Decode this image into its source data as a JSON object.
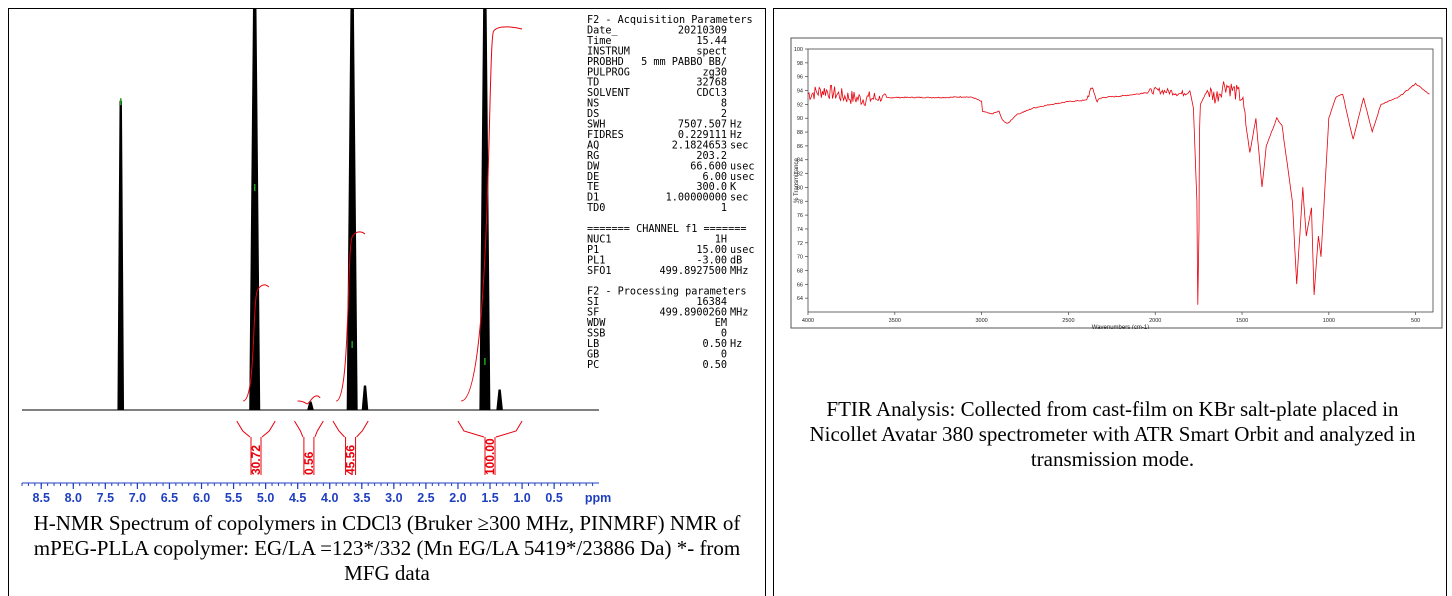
{
  "nmr_panel": {
    "caption": "H-NMR Spectrum of copolymers in CDCl3 (Bruker ≥300 MHz, PINMRF) NMR of mPEG-PLLA copolymer: EG/LA =123*/332 (Mn EG/LA 5419*/23886 Da) *- from MFG data",
    "parameters": [
      {
        "name": "F2 - Acquisition Parameters",
        "value": "",
        "unit": "",
        "header": true
      },
      {
        "name": "Date_",
        "value": "20210309",
        "unit": ""
      },
      {
        "name": "Time",
        "value": "15.44",
        "unit": ""
      },
      {
        "name": "INSTRUM",
        "value": "spect",
        "unit": ""
      },
      {
        "name": "PROBHD",
        "value": "5 mm PABBO BB/",
        "unit": ""
      },
      {
        "name": "PULPROG",
        "value": "zg30",
        "unit": ""
      },
      {
        "name": "TD",
        "value": "32768",
        "unit": ""
      },
      {
        "name": "SOLVENT",
        "value": "CDCl3",
        "unit": ""
      },
      {
        "name": "NS",
        "value": "8",
        "unit": ""
      },
      {
        "name": "DS",
        "value": "2",
        "unit": ""
      },
      {
        "name": "SWH",
        "value": "7507.507",
        "unit": "Hz"
      },
      {
        "name": "FIDRES",
        "value": "0.229111",
        "unit": "Hz"
      },
      {
        "name": "AQ",
        "value": "2.1824653",
        "unit": "sec"
      },
      {
        "name": "RG",
        "value": "203.2",
        "unit": ""
      },
      {
        "name": "DW",
        "value": "66.600",
        "unit": "usec"
      },
      {
        "name": "DE",
        "value": "6.00",
        "unit": "usec"
      },
      {
        "name": "TE",
        "value": "300.0",
        "unit": "K"
      },
      {
        "name": "D1",
        "value": "1.00000000",
        "unit": "sec"
      },
      {
        "name": "TD0",
        "value": "1",
        "unit": ""
      },
      {
        "name": "",
        "value": "",
        "unit": "",
        "blank": true
      },
      {
        "name": "======= CHANNEL f1 =======",
        "value": "",
        "unit": "",
        "header": true
      },
      {
        "name": "NUC1",
        "value": "1H",
        "unit": ""
      },
      {
        "name": "P1",
        "value": "15.00",
        "unit": "usec"
      },
      {
        "name": "PL1",
        "value": "-3.00",
        "unit": "dB"
      },
      {
        "name": "SFO1",
        "value": "499.8927500",
        "unit": "MHz"
      },
      {
        "name": "",
        "value": "",
        "unit": "",
        "blank": true
      },
      {
        "name": "F2 - Processing parameters",
        "value": "",
        "unit": "",
        "header": true
      },
      {
        "name": "SI",
        "value": "16384",
        "unit": ""
      },
      {
        "name": "SF",
        "value": "499.8900260",
        "unit": "MHz"
      },
      {
        "name": "WDW",
        "value": "EM",
        "unit": ""
      },
      {
        "name": "SSB",
        "value": "0",
        "unit": ""
      },
      {
        "name": "LB",
        "value": "0.50",
        "unit": "Hz"
      },
      {
        "name": "GB",
        "value": "0",
        "unit": ""
      },
      {
        "name": "PC",
        "value": "0.50",
        "unit": ""
      }
    ]
  },
  "ftir_panel": {
    "caption": "FTIR Analysis: Collected from cast-film on KBr salt-plate placed in Nicollet Avatar 380 spectrometer with ATR Smart Orbit and analyzed in transmission mode."
  },
  "chart_data": [
    {
      "type": "line",
      "xlabel": "",
      "x_unit_label": "ppm",
      "xlim": [
        8.8,
        -0.2
      ],
      "x_reversed": true,
      "x_ticks": [
        8.5,
        8.0,
        7.5,
        7.0,
        6.5,
        6.0,
        5.5,
        5.0,
        4.5,
        4.0,
        3.5,
        3.0,
        2.5,
        2.0,
        1.5,
        1.0,
        0.5
      ],
      "x_tick_labels": [
        "8.5",
        "8.0",
        "7.5",
        "7.0",
        "6.5",
        "6.0",
        "5.5",
        "5.0",
        "4.5",
        "4.0",
        "3.5",
        "3.0",
        "2.5",
        "2.0",
        "1.5",
        "1.0",
        "0.5"
      ],
      "peaks": [
        {
          "ppm": 7.26,
          "height": 0.77
        },
        {
          "ppm": 5.17,
          "height": 1.2
        },
        {
          "ppm": 3.65,
          "height": 1.2
        },
        {
          "ppm": 1.58,
          "height": 1.2
        },
        {
          "ppm": 4.3,
          "height": 0.02
        },
        {
          "ppm": 3.45,
          "height": 0.06
        },
        {
          "ppm": 1.35,
          "height": 0.05
        }
      ],
      "integrals": [
        {
          "from": 5.45,
          "to": 4.85,
          "value": "30.72"
        },
        {
          "from": 4.55,
          "to": 4.1,
          "value": "0.56"
        },
        {
          "from": 3.95,
          "to": 3.4,
          "value": "45.56"
        },
        {
          "from": 2.0,
          "to": 1.0,
          "value": "100.00"
        }
      ],
      "line_color": "#000000",
      "integral_color": "#e8000b",
      "tick_color": "#1f3fbf"
    },
    {
      "type": "line",
      "xlabel": "Wavenumbers (cm-1)",
      "ylabel": "% Transmittance",
      "xlim": [
        4000,
        400
      ],
      "x_reversed": true,
      "ylim": [
        62,
        100
      ],
      "x_ticks": [
        4000,
        3500,
        3000,
        2500,
        2000,
        1500,
        1000,
        500
      ],
      "x_tick_labels": [
        "4000",
        "3500",
        "3000",
        "2500",
        "2000",
        "1500",
        "1000",
        "500"
      ],
      "y_ticks": [
        64,
        66,
        68,
        70,
        72,
        74,
        76,
        78,
        80,
        82,
        84,
        86,
        88,
        90,
        92,
        94,
        96,
        98,
        100
      ],
      "y_tick_labels": [
        "64",
        "66",
        "68",
        "70",
        "72",
        "74",
        "76",
        "78",
        "80",
        "82",
        "84",
        "86",
        "88",
        "90",
        "92",
        "94",
        "96",
        "98",
        "100"
      ],
      "series": [
        {
          "line_color": "#e8000b",
          "x": [
            4000,
            3900,
            3800,
            3700,
            3600,
            3500,
            3400,
            3300,
            3200,
            3100,
            3050,
            3000,
            2995,
            2945,
            2900,
            2880,
            2850,
            2800,
            2700,
            2600,
            2500,
            2400,
            2360,
            2340,
            2300,
            2200,
            2100,
            2000,
            1900,
            1850,
            1800,
            1780,
            1760,
            1755,
            1748,
            1745,
            1740,
            1700,
            1650,
            1600,
            1550,
            1500,
            1455,
            1420,
            1385,
            1360,
            1300,
            1270,
            1210,
            1185,
            1150,
            1130,
            1100,
            1085,
            1060,
            1045,
            1000,
            960,
            920,
            880,
            860,
            800,
            750,
            700,
            600,
            500,
            450,
            420
          ],
          "y": [
            93.5,
            94.0,
            93.2,
            92.8,
            92.9,
            93.0,
            93.0,
            93.0,
            93.0,
            93.1,
            93.0,
            92.4,
            91.0,
            90.6,
            91.0,
            89.7,
            89.2,
            90.5,
            91.5,
            92.0,
            92.4,
            92.6,
            94.5,
            92.6,
            93.0,
            93.2,
            93.5,
            94.0,
            93.8,
            93.5,
            94.0,
            91.5,
            78.0,
            63.0,
            74.0,
            88.0,
            92.0,
            94.0,
            93.0,
            95.0,
            94.0,
            93.0,
            85.0,
            90.0,
            80.0,
            86.0,
            90.0,
            89.0,
            78.0,
            66.0,
            80.0,
            73.0,
            77.0,
            64.5,
            73.0,
            70.0,
            90.0,
            93.0,
            93.5,
            89.0,
            87.0,
            93.0,
            88.0,
            92.0,
            93.0,
            95.0,
            94.0,
            93.5
          ]
        }
      ]
    }
  ]
}
